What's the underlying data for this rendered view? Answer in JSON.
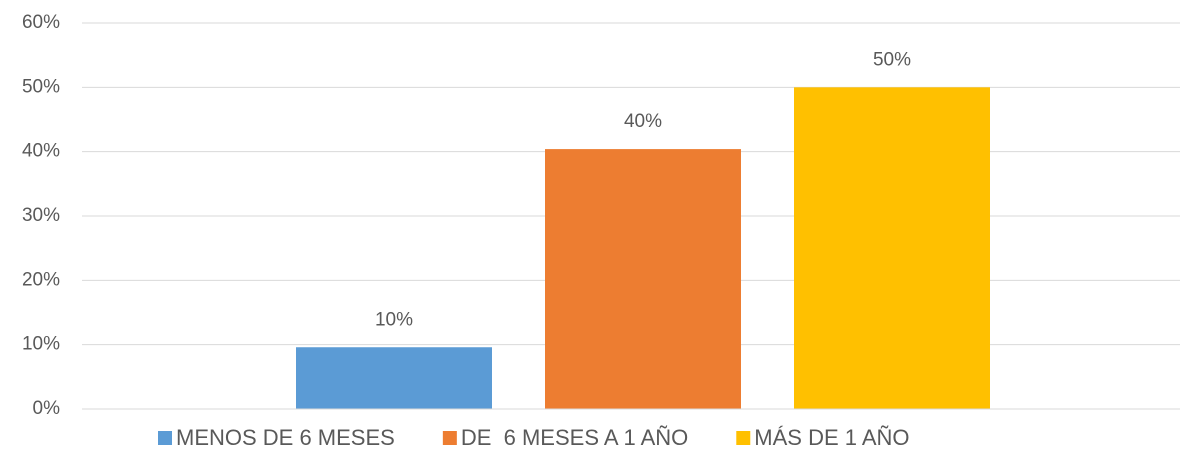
{
  "chart_data": {
    "type": "bar",
    "categories": [
      null
    ],
    "series": [
      {
        "name": "MENOS DE 6 MESES",
        "color": "#5b9bd5",
        "values": [
          9.6
        ],
        "value_labels": [
          "10%"
        ]
      },
      {
        "name": "DE  6 MESES A 1 AÑO",
        "color": "#ed7d31",
        "values": [
          40.4
        ],
        "value_labels": [
          "40%"
        ]
      },
      {
        "name": "MÁS DE 1 AÑO",
        "color": "#ffc000",
        "values": [
          50
        ],
        "value_labels": [
          "50%"
        ]
      }
    ],
    "ylim": [
      0,
      60
    ],
    "yticks": [
      {
        "value": 0,
        "label": "0%"
      },
      {
        "value": 10,
        "label": "10%"
      },
      {
        "value": 20,
        "label": "20%"
      },
      {
        "value": 30,
        "label": "30%"
      },
      {
        "value": 40,
        "label": "40%"
      },
      {
        "value": 50,
        "label": "50%"
      },
      {
        "value": 60,
        "label": "60%"
      }
    ],
    "grid": true,
    "legend": "bottom"
  }
}
